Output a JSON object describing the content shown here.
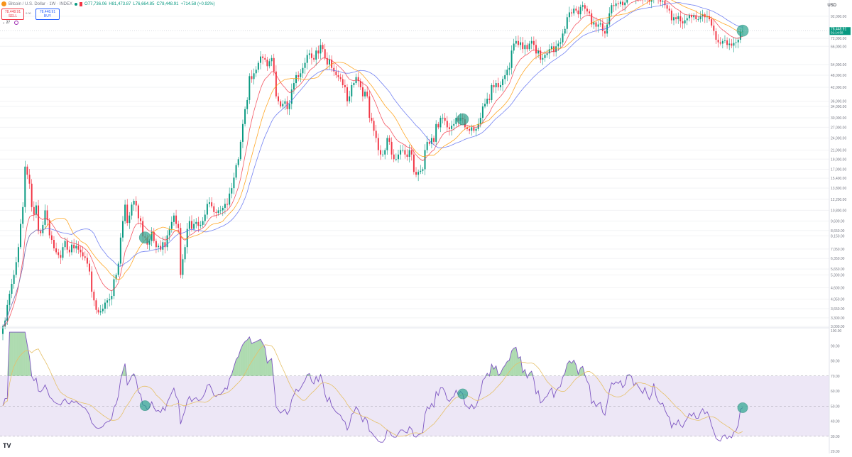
{
  "header": {
    "symbol_title": "Bitcoin / U.S. Dollar · 1W · INDEX",
    "open": "O77,736.06",
    "high": "H81,473.87",
    "low": "L76,664.85",
    "close": "C78,448.91",
    "change": "+714.58 (+0.92%)"
  },
  "trade": {
    "sell_price": "78,448.91",
    "sell_label": "SELL",
    "spread": "0.00",
    "buy_price": "78,448.91",
    "buy_label": "BUY"
  },
  "indicators": {
    "count": "27"
  },
  "currency": "USD",
  "price_tag": {
    "price": "78,448.91",
    "countdown": "01:14:58"
  },
  "colors": {
    "up": "#089981",
    "down": "#f23645",
    "ma_fast": "#f23645",
    "ma_mid": "#ff9800",
    "ma_slow": "#5b6cf0",
    "rsi_line": "#7e57c2",
    "rsi_ma": "#e6c068",
    "rsi_band": "#ede7f6",
    "circle": "#2aa58f"
  },
  "chart_data": [
    {
      "type": "candlestick",
      "title": "",
      "ylabel": "USD",
      "yscale": "log",
      "ylim": [
        3000,
        105000
      ],
      "ytick_labels": [
        "92,000.00",
        "72,000.00",
        "66,000.00",
        "54,000.00",
        "48,000.00",
        "42,000.00",
        "36,000.00",
        "34,000.00",
        "30,000.00",
        "27,000.00",
        "24,000.00",
        "21,000.00",
        "19,000.00",
        "17,000.00",
        "15,400.00",
        "13,800.00",
        "12,200.00",
        "10,800.00",
        "9,600.00",
        "8,650.00",
        "8,150.00",
        "7,050.00",
        "6,350.00",
        "5,650.00",
        "5,300.00",
        "4,600.00",
        "4,050.00",
        "3,650.00",
        "3,300.00",
        "3,000.00"
      ],
      "ytick_values": [
        92000,
        72000,
        66000,
        54000,
        48000,
        42000,
        36000,
        34000,
        30000,
        27000,
        24000,
        21000,
        19000,
        17000,
        15400,
        13800,
        12200,
        10800,
        9600,
        8650,
        8150,
        7050,
        6350,
        5650,
        5300,
        4600,
        4050,
        3650,
        3300,
        3000
      ],
      "series": [
        {
          "name": "",
          "type": "candles",
          "closes": [
            3000,
            3200,
            3800,
            4300,
            4800,
            5300,
            6100,
            7200,
            9300,
            11200,
            17500,
            16000,
            14500,
            11200,
            10300,
            11400,
            8600,
            8400,
            9200,
            10800,
            9700,
            8200,
            7800,
            7100,
            6800,
            6600,
            6400,
            7200,
            7700,
            7000,
            6800,
            7400,
            7100,
            7300,
            7000,
            6800,
            6500,
            6400,
            6000,
            5500,
            4400,
            4000,
            3600,
            3500,
            3550,
            3650,
            3900,
            4000,
            4050,
            4200,
            5050,
            5300,
            6000,
            8000,
            9600,
            11500,
            9400,
            10200,
            11500,
            12000,
            11400,
            9900,
            9600,
            8100,
            8000,
            7400,
            7700,
            8500,
            7700,
            7200,
            7300,
            7000,
            7600,
            7200,
            8200,
            8800,
            9500,
            10200,
            9300,
            8900,
            5300,
            6300,
            7200,
            8800,
            9600,
            8800,
            9300,
            9500,
            9100,
            9200,
            9600,
            10300,
            11600,
            11800,
            11300,
            10600,
            10500,
            10800,
            10800,
            11100,
            11600,
            11500,
            13000,
            13800,
            15500,
            17800,
            19000,
            23000,
            28000,
            33000,
            36500,
            47500,
            46000,
            49000,
            51000,
            55000,
            59000,
            58000,
            57000,
            53000,
            56000,
            58000,
            50000,
            38000,
            36000,
            34000,
            35000,
            36000,
            33000,
            35000,
            41000,
            44000,
            48000,
            47000,
            49000,
            52000,
            55000,
            60000,
            61000,
            58000,
            57000,
            63000,
            61000,
            67000,
            64000,
            58000,
            54000,
            57000,
            52000,
            50000,
            48000,
            47000,
            46000,
            43000,
            42000,
            36000,
            38000,
            43000,
            44000,
            47000,
            45000,
            42000,
            38000,
            40000,
            38000,
            30000,
            29000,
            26000,
            24000,
            21000,
            20000,
            20000,
            21000,
            24000,
            23000,
            20000,
            19000,
            19000,
            20000,
            21000,
            21000,
            20000,
            19500,
            21000,
            20000,
            16500,
            16000,
            16500,
            16700,
            17000,
            21000,
            23000,
            22500,
            24000,
            23000,
            28000,
            27000,
            30000,
            30000,
            29000,
            27000,
            26500,
            27500,
            28000,
            30000,
            29000,
            30000,
            29500,
            27000,
            26500,
            26000,
            27000,
            26000,
            26500,
            28000,
            30000,
            34000,
            35000,
            37000,
            36500,
            43000,
            42000,
            44000,
            42000,
            43000,
            46000,
            48000,
            51000,
            52000,
            63000,
            68000,
            70000,
            67000,
            69000,
            64000,
            67000,
            64000,
            68000,
            70000,
            67000,
            61000,
            63000,
            57000,
            58000,
            60000,
            61000,
            64000,
            66000,
            62000,
            66000,
            68000,
            69000,
            76000,
            80000,
            91000,
            96000,
            95000,
            100000,
            98000,
            94000,
            102000,
            104000,
            100000,
            97000,
            95000,
            84000,
            86000,
            82000,
            84000,
            85000,
            78000,
            76000,
            84000,
            95000,
            104000,
            103000,
            106000,
            105000,
            108000,
            104000,
            107000,
            118000,
            119000,
            118000,
            113000,
            116000,
            114000,
            112000,
            110000,
            115000,
            111000,
            108000,
            112000,
            122000,
            114000,
            110000,
            108000,
            109000,
            104000,
            100000,
            98000,
            88000,
            91000,
            89000,
            92000,
            87000,
            85000,
            88000,
            90000,
            93000,
            91000,
            93000,
            89000,
            89000,
            92000,
            94000,
            91000,
            92000,
            89000,
            83000,
            78000,
            71000,
            69000,
            68000,
            70000,
            70500,
            67000,
            68000,
            66500,
            68500,
            69000,
            71000,
            77700,
            78448.91
          ]
        },
        {
          "name": "",
          "type": "line",
          "role": "ma_fast"
        },
        {
          "name": "",
          "type": "line",
          "role": "ma_mid"
        },
        {
          "name": "",
          "type": "line",
          "role": "ma_slow"
        }
      ],
      "annotations": [
        "circle",
        "circle",
        "circle"
      ]
    },
    {
      "type": "line",
      "title": "",
      "ylim": [
        20,
        100
      ],
      "ytick_labels": [
        "100.00",
        "90.00",
        "80.00",
        "70.00",
        "60.00",
        "50.00",
        "40.00",
        "30.00",
        "20.00"
      ],
      "ytick_values": [
        100,
        90,
        80,
        70,
        60,
        50,
        40,
        30,
        20
      ],
      "bands": {
        "upper": 70,
        "middle": 50,
        "lower": 30
      },
      "series": [
        {
          "name": "",
          "role": "rsi"
        },
        {
          "name": "",
          "role": "rsi_ma"
        }
      ],
      "annotations": [
        "circle",
        "circle",
        "circle"
      ]
    }
  ]
}
